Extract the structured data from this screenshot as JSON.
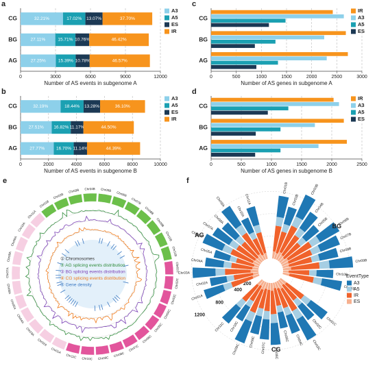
{
  "chart_data": [
    {
      "type": "stacked-bar",
      "panel": "a",
      "xlabel": "Number of AS events in subgenome A",
      "categories": [
        "CG",
        "BG",
        "AG"
      ],
      "series": [
        {
          "name": "A3",
          "color": "#8dd0ea",
          "values": [
            3640,
            2982,
            3025
          ],
          "value_labels": [
            "32.21%",
            "27.11%",
            "27.25%"
          ]
        },
        {
          "name": "A5",
          "color": "#1ba0b2",
          "values": [
            1923,
            1728,
            1708
          ],
          "value_labels": [
            "17.02%",
            "15.71%",
            "15.39%"
          ]
        },
        {
          "name": "ES",
          "color": "#1c3954",
          "values": [
            1477,
            1184,
            1197
          ],
          "value_labels": [
            "13.07%",
            "10.76%",
            "10.78%"
          ]
        },
        {
          "name": "IR",
          "color": "#f7941d",
          "values": [
            4260,
            5106,
            5169
          ],
          "value_labels": [
            "37.70%",
            "46.42%",
            "46.57%"
          ]
        }
      ],
      "xlim": [
        0,
        12000
      ],
      "xticks": [
        0,
        3000,
        6000,
        9000,
        12000
      ],
      "grid": true
    },
    {
      "type": "stacked-bar",
      "panel": "b",
      "xlabel": "Number of AS events in subgenome B",
      "categories": [
        "CG",
        "BG",
        "AG"
      ],
      "series": [
        {
          "name": "A3",
          "color": "#8dd0ea",
          "values": [
            2865,
            2228,
            2374
          ],
          "value_labels": [
            "32.19%",
            "27.51%",
            "27.77%"
          ]
        },
        {
          "name": "A5",
          "color": "#1ba0b2",
          "values": [
            1641,
            1362,
            1428
          ],
          "value_labels": [
            "18.44%",
            "16.82%",
            "16.70%"
          ]
        },
        {
          "name": "ES",
          "color": "#1c3954",
          "values": [
            1182,
            905,
            952
          ],
          "value_labels": [
            "13.28%",
            "11.17%",
            "11.14%"
          ]
        },
        {
          "name": "IR",
          "color": "#f7941d",
          "values": [
            3213,
            3605,
            3795
          ],
          "value_labels": [
            "36.10%",
            "44.50%",
            "44.39%"
          ]
        }
      ],
      "xlim": [
        0,
        10000
      ],
      "xticks": [
        0,
        2000,
        4000,
        6000,
        8000,
        10000
      ],
      "grid": true
    },
    {
      "type": "grouped-bar",
      "panel": "c",
      "xlabel": "Number of AS genes in subgenome A",
      "categories": [
        "CG",
        "BG",
        "AG"
      ],
      "series": [
        {
          "name": "IR",
          "color": "#f7941d",
          "values": [
            2420,
            2680,
            2720
          ]
        },
        {
          "name": "A3",
          "color": "#8dd0ea",
          "values": [
            2640,
            2250,
            2300
          ]
        },
        {
          "name": "A5",
          "color": "#1ba0b2",
          "values": [
            1480,
            1280,
            1330
          ]
        },
        {
          "name": "ES",
          "color": "#1c3954",
          "values": [
            1150,
            870,
            900
          ]
        }
      ],
      "xlim": [
        0,
        3000
      ],
      "xticks": [
        0,
        500,
        1000,
        1500,
        2000,
        2500,
        3000
      ],
      "grid": true
    },
    {
      "type": "grouped-bar",
      "panel": "d",
      "xlabel": "Number of AS genes in subgenome B",
      "categories": [
        "CG",
        "BG",
        "AG"
      ],
      "series": [
        {
          "name": "IR",
          "color": "#f7941d",
          "values": [
            2030,
            2200,
            2250
          ]
        },
        {
          "name": "A3",
          "color": "#8dd0ea",
          "values": [
            2120,
            1720,
            1780
          ]
        },
        {
          "name": "A5",
          "color": "#1ba0b2",
          "values": [
            1280,
            1150,
            1150
          ]
        },
        {
          "name": "ES",
          "color": "#1c3954",
          "values": [
            940,
            740,
            730
          ]
        }
      ],
      "xlim": [
        0,
        2500
      ],
      "xticks": [
        0,
        500,
        1000,
        1500,
        2000,
        2500
      ],
      "grid": true
    },
    {
      "type": "circos",
      "panel": "e",
      "chromosomes": [
        "Chr01A",
        "Chr02A",
        "Chr03A",
        "Chr04A",
        "Chr05A",
        "Chr06A",
        "Chr07A",
        "Chr08A",
        "Chr09A",
        "Chr10A",
        "Chr11A",
        "Chr01B",
        "Chr02B",
        "Chr03B",
        "Chr04B",
        "Chr05B",
        "Chr06B",
        "Chr07B",
        "Chr08B",
        "Chr09B",
        "Chr10B",
        "Chr11B",
        "Chr01C",
        "Chr02C",
        "Chr03C",
        "Chr04C",
        "Chr05C",
        "Chr06C",
        "Chr07C",
        "Chr08C",
        "Chr09C",
        "Chr10C",
        "Chr11C"
      ],
      "genome_colors": [
        "#f6cfe2",
        "#6cbf4a",
        "#e2559c"
      ],
      "legend": [
        {
          "label": "① Chromosomes",
          "color": "#333333"
        },
        {
          "label": "② AG splicing events distribution",
          "color": "#2e8b3a"
        },
        {
          "label": "③ BG splicing events distribution",
          "color": "#7a3fb5"
        },
        {
          "label": "④ CG splicing events distribution",
          "color": "#f07a1a"
        },
        {
          "label": "⑤ Gene density",
          "color": "#3a78c2"
        }
      ]
    },
    {
      "type": "radial-bar",
      "panel": "f",
      "legend_title": "EventType",
      "groups": [
        "AG",
        "BG",
        "CG"
      ],
      "categories": [
        "Chr01A",
        "Chr02A",
        "Chr03A",
        "Chr04A",
        "Chr05A",
        "Chr06A",
        "Chr07A",
        "Chr08A",
        "Chr09A",
        "Chr10A",
        "Chr11A",
        "Chr01B",
        "Chr02B",
        "Chr03B",
        "Chr04B",
        "Chr05B",
        "Chr06B",
        "Chr07B",
        "Chr08B",
        "Chr09B",
        "Chr10B",
        "Chr11B",
        "Chr01C",
        "Chr02C",
        "Chr03C",
        "Chr04C",
        "Chr05C",
        "Chr06C",
        "Chr07C",
        "Chr08C",
        "Chr09C",
        "Chr10C",
        "Chr11C"
      ],
      "series": [
        {
          "name": "A3",
          "color": "#1f78b4",
          "values": [
            360,
            300,
            410,
            330,
            290,
            380,
            350,
            320,
            400,
            280,
            340,
            380,
            320,
            430,
            350,
            300,
            400,
            370,
            340,
            420,
            300,
            360,
            370,
            310,
            420,
            340,
            290,
            390,
            360,
            330,
            410,
            290,
            350
          ]
        },
        {
          "name": "A5",
          "color": "#a6cee3",
          "values": [
            150,
            130,
            170,
            140,
            120,
            160,
            150,
            140,
            170,
            120,
            140,
            160,
            140,
            180,
            150,
            130,
            170,
            160,
            140,
            180,
            130,
            150,
            150,
            130,
            170,
            140,
            120,
            160,
            150,
            140,
            170,
            120,
            150
          ]
        },
        {
          "name": "IR",
          "color": "#f0622b",
          "values": [
            400,
            350,
            460,
            380,
            330,
            430,
            390,
            370,
            450,
            320,
            380,
            460,
            400,
            520,
            430,
            370,
            490,
            450,
            420,
            510,
            370,
            440,
            390,
            340,
            450,
            370,
            320,
            420,
            380,
            360,
            440,
            310,
            370
          ]
        },
        {
          "name": "ES",
          "color": "#f6b08f",
          "values": [
            120,
            100,
            140,
            110,
            90,
            130,
            115,
            105,
            135,
            95,
            110,
            130,
            110,
            150,
            120,
            100,
            140,
            125,
            115,
            145,
            100,
            120,
            130,
            110,
            150,
            120,
            100,
            140,
            125,
            115,
            145,
            100,
            120
          ]
        }
      ],
      "rlim": [
        0,
        1400
      ],
      "rticks": [
        200,
        400,
        800,
        1200
      ]
    }
  ]
}
